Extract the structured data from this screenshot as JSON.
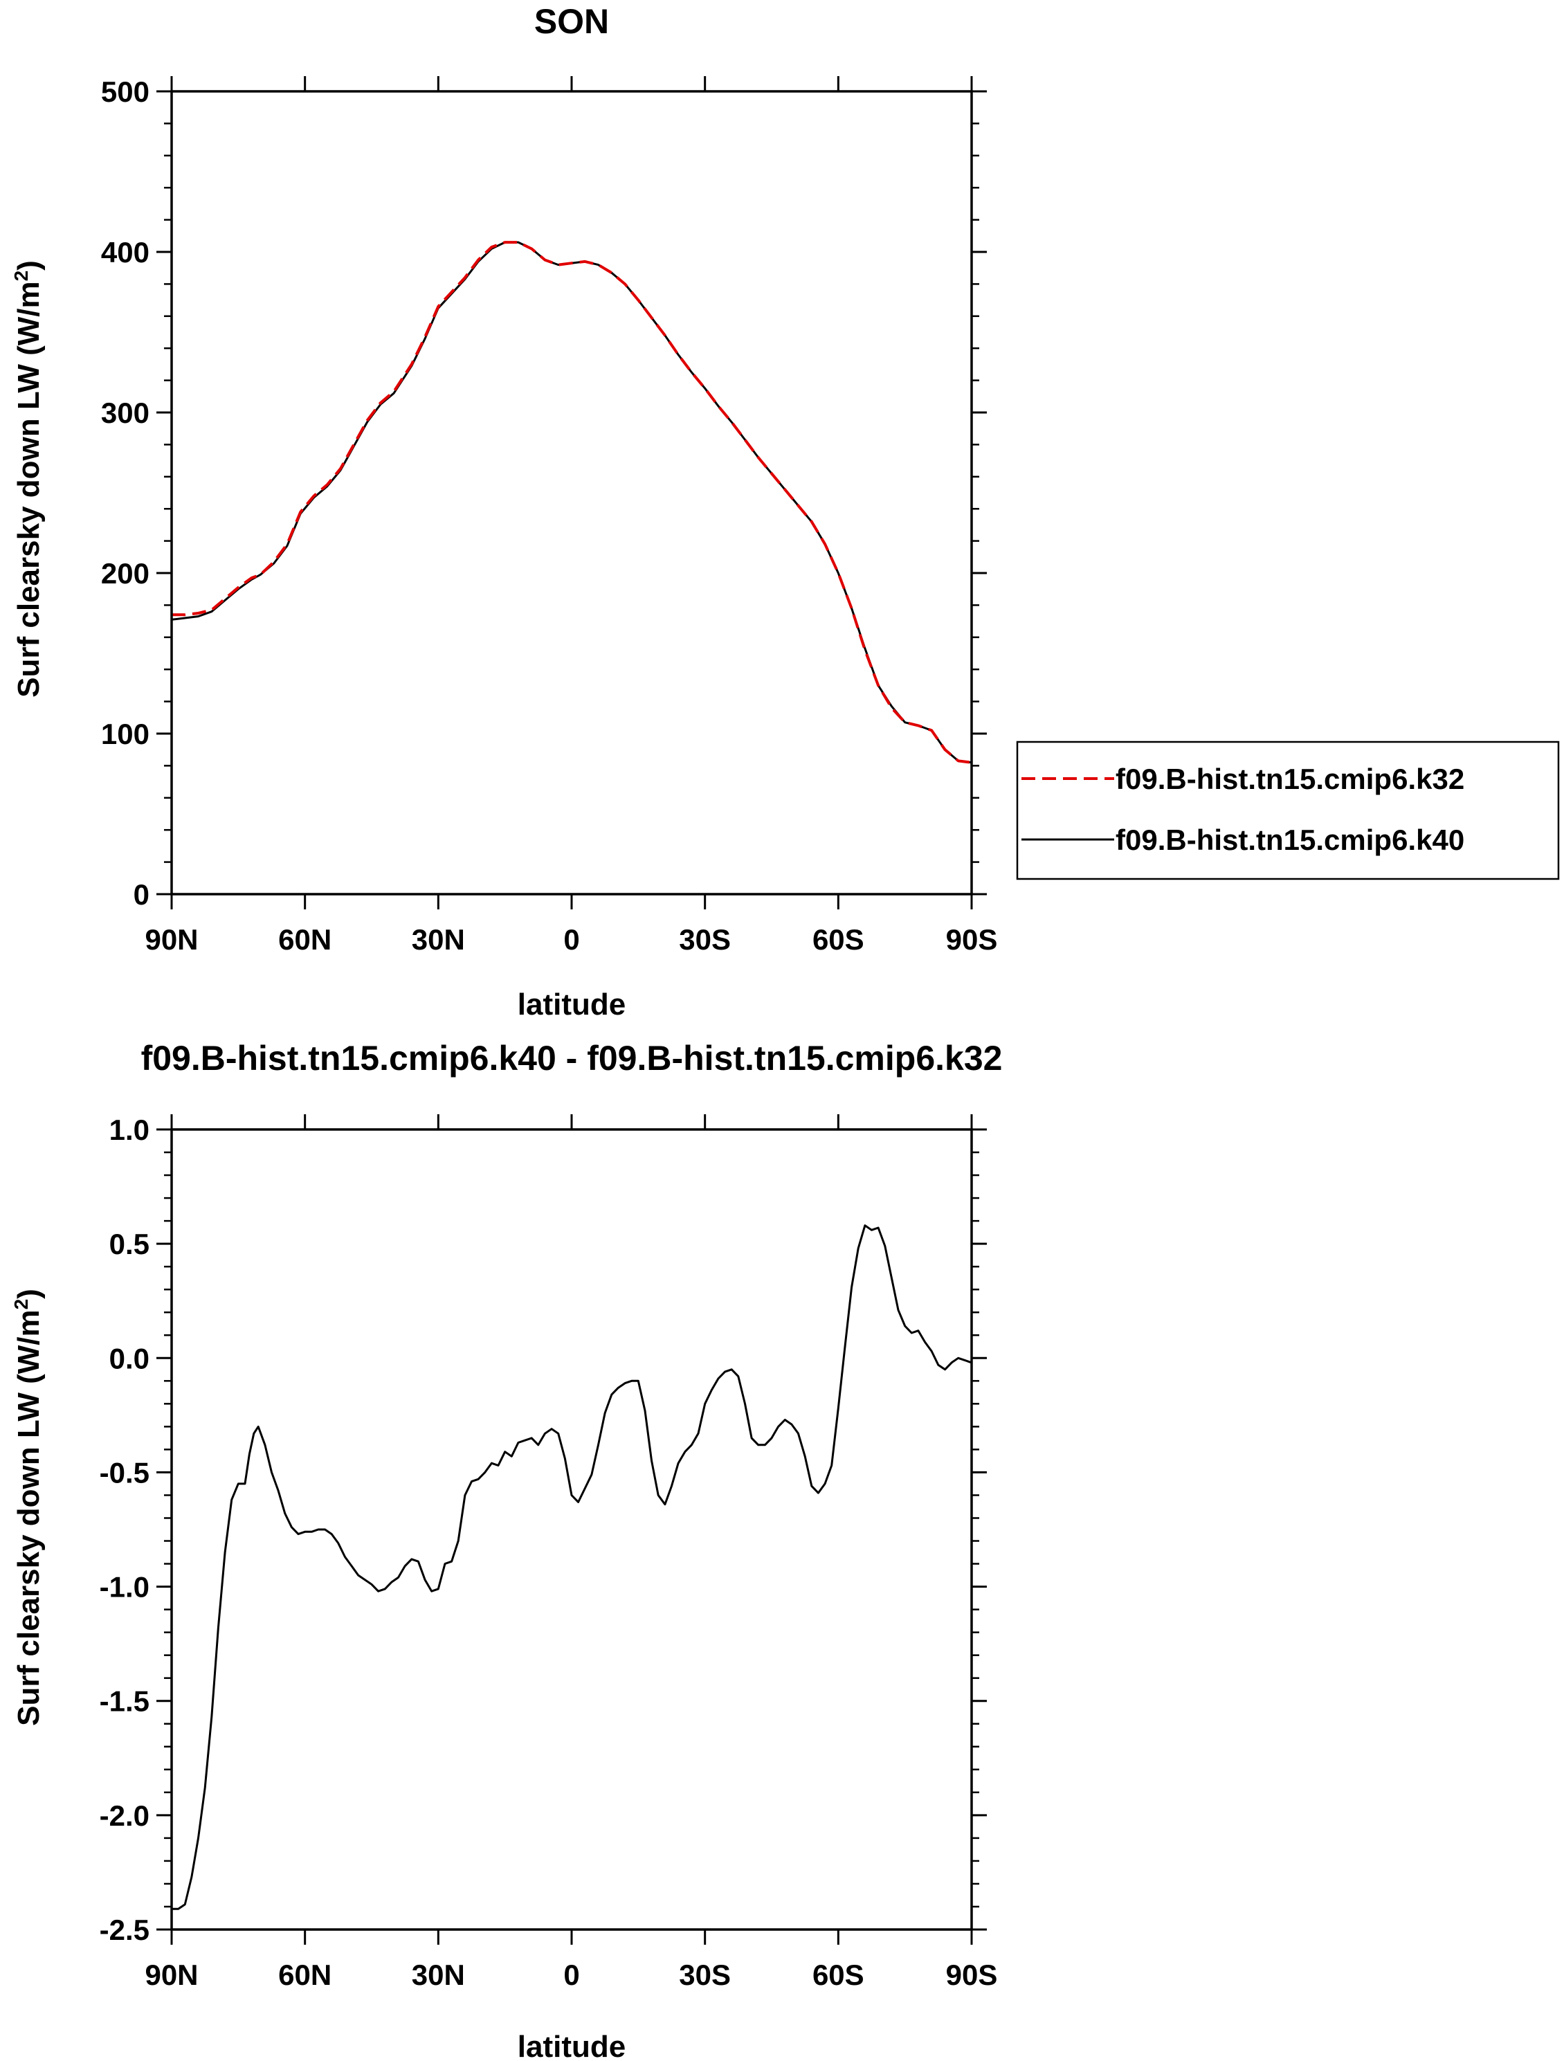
{
  "chart_data": [
    {
      "type": "line",
      "title": "SON",
      "xlabel": "latitude",
      "ylabel": "Surf clearsky down LW (W/m",
      "ylabel_sup": "2",
      "ylabel_close": ")",
      "xlim": [
        90,
        -90
      ],
      "ylim": [
        0,
        500
      ],
      "xticks": [
        90,
        60,
        30,
        0,
        -30,
        -60,
        -90
      ],
      "xtick_labels": [
        "90N",
        "60N",
        "30N",
        "0",
        "30S",
        "60S",
        "90S"
      ],
      "yticks": [
        0,
        100,
        200,
        300,
        400,
        500
      ],
      "ytick_labels": [
        "0",
        "100",
        "200",
        "300",
        "400",
        "500"
      ],
      "legend_position": "right",
      "grid": false,
      "series": [
        {
          "name": "f09.B-hist.tn15.cmip6.k32",
          "color": "#e00000",
          "style": "dashed",
          "x": [
            90,
            87,
            84,
            81,
            78,
            75,
            72,
            70,
            67,
            64,
            61,
            58,
            55,
            52,
            49,
            46,
            43,
            40,
            36,
            33,
            30,
            27,
            24,
            21,
            18,
            15,
            12,
            9,
            6,
            3,
            0,
            -3,
            -6,
            -9,
            -12,
            -15,
            -18,
            -21,
            -24,
            -27,
            -30,
            -33,
            -36,
            -39,
            -42,
            -45,
            -48,
            -51,
            -54,
            -57,
            -60,
            -63,
            -66,
            -69,
            -72,
            -75,
            -78,
            -81,
            -84,
            -87,
            -90
          ],
          "y": [
            174,
            174,
            175,
            177,
            184,
            191,
            197,
            199,
            207,
            218,
            238,
            248,
            255,
            265,
            280,
            295,
            306,
            313,
            330,
            347,
            366,
            375,
            384,
            395,
            403,
            406,
            406,
            402,
            395,
            392,
            393,
            394,
            392,
            387,
            380,
            370,
            359,
            348,
            336,
            325,
            315,
            304,
            294,
            283,
            272,
            262,
            252,
            242,
            232,
            218,
            200,
            178,
            152,
            130,
            116,
            107,
            105,
            102,
            90,
            83,
            82
          ]
        },
        {
          "name": "f09.B-hist.tn15.cmip6.k40",
          "color": "#000000",
          "style": "solid",
          "x": [
            90,
            87,
            84,
            81,
            78,
            75,
            72,
            70,
            67,
            64,
            61,
            58,
            55,
            52,
            49,
            46,
            43,
            40,
            36,
            33,
            30,
            27,
            24,
            21,
            18,
            15,
            12,
            9,
            6,
            3,
            0,
            -3,
            -6,
            -9,
            -12,
            -15,
            -18,
            -21,
            -24,
            -27,
            -30,
            -33,
            -36,
            -39,
            -42,
            -45,
            -48,
            -51,
            -54,
            -57,
            -60,
            -63,
            -66,
            -69,
            -72,
            -75,
            -78,
            -81,
            -84,
            -87,
            -90
          ],
          "y": [
            171,
            172,
            173,
            176,
            183,
            190,
            196,
            199,
            206,
            217,
            237,
            247,
            254,
            264,
            279,
            294,
            305,
            312,
            329,
            346,
            365,
            374,
            383,
            394,
            402,
            406,
            406,
            402,
            395,
            392,
            393,
            394,
            392,
            387,
            380,
            370,
            359,
            348,
            336,
            325,
            315,
            304,
            294,
            283,
            272,
            262,
            252,
            242,
            232,
            218,
            200,
            178,
            153,
            130,
            117,
            107,
            105,
            102,
            90,
            83,
            82
          ]
        }
      ]
    },
    {
      "type": "line",
      "title": "f09.B-hist.tn15.cmip6.k40 - f09.B-hist.tn15.cmip6.k32",
      "xlabel": "latitude",
      "ylabel": "Surf clearsky down LW (W/m",
      "ylabel_sup": "2",
      "ylabel_close": ")",
      "xlim": [
        90,
        -90
      ],
      "ylim": [
        -2.5,
        1.0
      ],
      "xticks": [
        90,
        60,
        30,
        0,
        -30,
        -60,
        -90
      ],
      "xtick_labels": [
        "90N",
        "60N",
        "30N",
        "0",
        "30S",
        "60S",
        "90S"
      ],
      "yticks": [
        -2.5,
        -2.0,
        -1.5,
        -1.0,
        -0.5,
        0.0,
        0.5,
        1.0
      ],
      "ytick_labels": [
        "-2.5",
        "-2.0",
        "-1.5",
        "-1.0",
        "-0.5",
        "0.0",
        "0.5",
        "1.0"
      ],
      "grid": false,
      "series": [
        {
          "color": "#000000",
          "style": "solid",
          "x": [
            90,
            88.5,
            87,
            85.5,
            84,
            82.5,
            81,
            79.5,
            78,
            76.5,
            75,
            73.5,
            72.5,
            71.5,
            70.5,
            69,
            67.5,
            66,
            64.5,
            63,
            61.5,
            60,
            58.5,
            57,
            55.5,
            54,
            52.5,
            51,
            49.5,
            48,
            46.5,
            45,
            43.5,
            42,
            40.5,
            39,
            37.5,
            36,
            34.5,
            33,
            31.5,
            30,
            28.5,
            27,
            25.5,
            24,
            22.5,
            21,
            19.5,
            18,
            16.5,
            15,
            13.5,
            12,
            10.5,
            9,
            7.5,
            6,
            4.5,
            3,
            1.5,
            0,
            -1.5,
            -3,
            -4.5,
            -6,
            -7.5,
            -9,
            -10.5,
            -12,
            -13.5,
            -15,
            -16.5,
            -18,
            -19.5,
            -21,
            -22.5,
            -24,
            -25.5,
            -27,
            -28.5,
            -30,
            -31.5,
            -33,
            -34.5,
            -36,
            -37.5,
            -39,
            -40.5,
            -42,
            -43.5,
            -45,
            -46.5,
            -48,
            -49.5,
            -51,
            -52.5,
            -54,
            -55.5,
            -57,
            -58.5,
            -60,
            -61.5,
            -63,
            -64.5,
            -66,
            -67.5,
            -69,
            -70.5,
            -72,
            -73.5,
            -75,
            -76.5,
            -78,
            -79.5,
            -81,
            -82.5,
            -84,
            -85.5,
            -87,
            -88.5,
            -90
          ],
          "y": [
            -2.41,
            -2.41,
            -2.39,
            -2.27,
            -2.1,
            -1.88,
            -1.57,
            -1.18,
            -0.85,
            -0.62,
            -0.55,
            -0.55,
            -0.42,
            -0.33,
            -0.3,
            -0.38,
            -0.5,
            -0.58,
            -0.68,
            -0.74,
            -0.77,
            -0.76,
            -0.76,
            -0.75,
            -0.75,
            -0.77,
            -0.81,
            -0.87,
            -0.91,
            -0.95,
            -0.97,
            -0.99,
            -1.02,
            -1.01,
            -0.98,
            -0.96,
            -0.91,
            -0.88,
            -0.89,
            -0.97,
            -1.02,
            -1.01,
            -0.9,
            -0.89,
            -0.8,
            -0.6,
            -0.54,
            -0.53,
            -0.5,
            -0.46,
            -0.47,
            -0.41,
            -0.43,
            -0.37,
            -0.36,
            -0.35,
            -0.38,
            -0.33,
            -0.31,
            -0.33,
            -0.44,
            -0.6,
            -0.63,
            -0.57,
            -0.51,
            -0.38,
            -0.24,
            -0.16,
            -0.13,
            -0.11,
            -0.1,
            -0.1,
            -0.23,
            -0.45,
            -0.6,
            -0.64,
            -0.56,
            -0.46,
            -0.41,
            -0.38,
            -0.33,
            -0.2,
            -0.14,
            -0.09,
            -0.06,
            -0.05,
            -0.08,
            -0.2,
            -0.35,
            -0.38,
            -0.38,
            -0.35,
            -0.3,
            -0.27,
            -0.29,
            -0.33,
            -0.43,
            -0.56,
            -0.59,
            -0.55,
            -0.47,
            -0.22,
            0.05,
            0.31,
            0.48,
            0.58,
            0.56,
            0.57,
            0.49,
            0.35,
            0.21,
            0.14,
            0.11,
            0.12,
            0.07,
            0.03,
            -0.03,
            -0.05,
            -0.02,
            0.0,
            -0.01,
            -0.02
          ]
        }
      ]
    }
  ]
}
